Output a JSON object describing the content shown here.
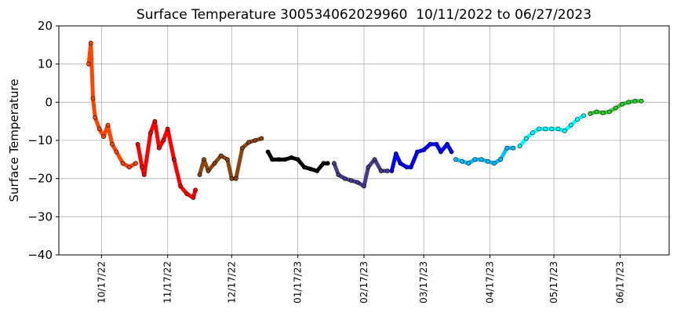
{
  "chart_data": {
    "type": "scatter",
    "title": "Surface Temperature 300534062029960  10/11/2022 to 06/27/2023",
    "y_label": "Surface Temperature",
    "grid": true,
    "xlim": [
      "2022-09-27",
      "2023-07-10"
    ],
    "xticks": [
      {
        "value": "2022-10-17",
        "label": "10/17/22"
      },
      {
        "value": "2022-11-17",
        "label": "11/17/22"
      },
      {
        "value": "2022-12-17",
        "label": "12/17/22"
      },
      {
        "value": "2023-01-17",
        "label": "01/17/23"
      },
      {
        "value": "2023-02-17",
        "label": "02/17/23"
      },
      {
        "value": "2023-03-17",
        "label": "03/17/23"
      },
      {
        "value": "2023-04-17",
        "label": "04/17/23"
      },
      {
        "value": "2023-05-17",
        "label": "05/17/23"
      },
      {
        "value": "2023-06-17",
        "label": "06/17/23"
      }
    ],
    "ylim": [
      -40,
      20
    ],
    "yticks": [
      {
        "value": -40,
        "label": "−40"
      },
      {
        "value": -30,
        "label": "−30"
      },
      {
        "value": -20,
        "label": "−20"
      },
      {
        "value": -10,
        "label": "−10"
      },
      0,
      10,
      20
    ],
    "series": [
      {
        "color": "#ff4500",
        "x": [
          "2022-10-11",
          "2022-10-12",
          "2022-10-13",
          "2022-10-14",
          "2022-10-16",
          "2022-10-18",
          "2022-10-20",
          "2022-10-22",
          "2022-10-24",
          "2022-10-27",
          "2022-10-30",
          "2022-11-02"
        ],
        "values": [
          10,
          15.5,
          1,
          -4,
          -7,
          -9,
          -6,
          -11,
          -13,
          -16,
          -17,
          -16
        ]
      },
      {
        "color": "#ff0000",
        "x": [
          "2022-11-03",
          "2022-11-05",
          "2022-11-06",
          "2022-11-09",
          "2022-11-11",
          "2022-11-13",
          "2022-11-15",
          "2022-11-17",
          "2022-11-20",
          "2022-11-23",
          "2022-11-26",
          "2022-11-29",
          "2022-11-30"
        ],
        "values": [
          -11,
          -17,
          -19,
          -8,
          -5,
          -12,
          -10,
          -7,
          -15,
          -22,
          -24,
          -25,
          -23
        ]
      },
      {
        "color": "#8b4513",
        "x": [
          "2022-12-02",
          "2022-12-04",
          "2022-12-06",
          "2022-12-09",
          "2022-12-12",
          "2022-12-15",
          "2022-12-17",
          "2022-12-19",
          "2022-12-22",
          "2022-12-25",
          "2022-12-28",
          "2022-12-31"
        ],
        "values": [
          -19,
          -15,
          -18,
          -16,
          -14,
          -15,
          -20,
          -20,
          -12,
          -10.5,
          -10,
          -9.5
        ]
      },
      {
        "color": "#000000",
        "x": [
          "2023-01-03",
          "2023-01-05",
          "2023-01-08",
          "2023-01-11",
          "2023-01-14",
          "2023-01-17",
          "2023-01-20",
          "2023-01-23",
          "2023-01-26",
          "2023-01-29",
          "2023-01-31"
        ],
        "values": [
          -13,
          -15,
          -15,
          -15,
          -14.5,
          -15,
          -17,
          -17.5,
          -18,
          -16,
          -16
        ]
      },
      {
        "color": "#483d8b",
        "x": [
          "2023-02-03",
          "2023-02-05",
          "2023-02-08",
          "2023-02-11",
          "2023-02-14",
          "2023-02-17",
          "2023-02-19",
          "2023-02-22",
          "2023-02-25",
          "2023-02-28"
        ],
        "values": [
          -16,
          -19,
          -20,
          -20.5,
          -21,
          -22,
          -17,
          -15,
          -18,
          -18
        ]
      },
      {
        "color": "#0000ff",
        "x": [
          "2023-03-02",
          "2023-03-04",
          "2023-03-06",
          "2023-03-09",
          "2023-03-11",
          "2023-03-14",
          "2023-03-17",
          "2023-03-20",
          "2023-03-23",
          "2023-03-25",
          "2023-03-28",
          "2023-03-30"
        ],
        "values": [
          -18,
          -13.5,
          -16,
          -17,
          -17,
          -13,
          -12.5,
          -11,
          -11,
          -13,
          -11,
          -13
        ]
      },
      {
        "color": "#00bfff",
        "x": [
          "2023-04-01",
          "2023-04-04",
          "2023-04-07",
          "2023-04-10",
          "2023-04-13",
          "2023-04-16",
          "2023-04-19",
          "2023-04-22",
          "2023-04-25",
          "2023-04-28"
        ],
        "values": [
          -15,
          -15.5,
          -16,
          -15,
          -15,
          -15.5,
          -16,
          -15,
          -12,
          -12
        ]
      },
      {
        "color": "#00ffff",
        "x": [
          "2023-05-01",
          "2023-05-04",
          "2023-05-07",
          "2023-05-10",
          "2023-05-13",
          "2023-05-16",
          "2023-05-19",
          "2023-05-22",
          "2023-05-25",
          "2023-05-28",
          "2023-05-31"
        ],
        "values": [
          -11.5,
          -9.5,
          -8,
          -7,
          -7,
          -7,
          -7,
          -7.5,
          -6,
          -4.5,
          -3.5
        ]
      },
      {
        "color": "#32cd32",
        "x": [
          "2023-06-03",
          "2023-06-06",
          "2023-06-09",
          "2023-06-12",
          "2023-06-15",
          "2023-06-18",
          "2023-06-21",
          "2023-06-24",
          "2023-06-27"
        ],
        "values": [
          -3,
          -2.5,
          -2.8,
          -2.5,
          -1.5,
          -0.5,
          0,
          0.3,
          0.3
        ]
      }
    ]
  }
}
